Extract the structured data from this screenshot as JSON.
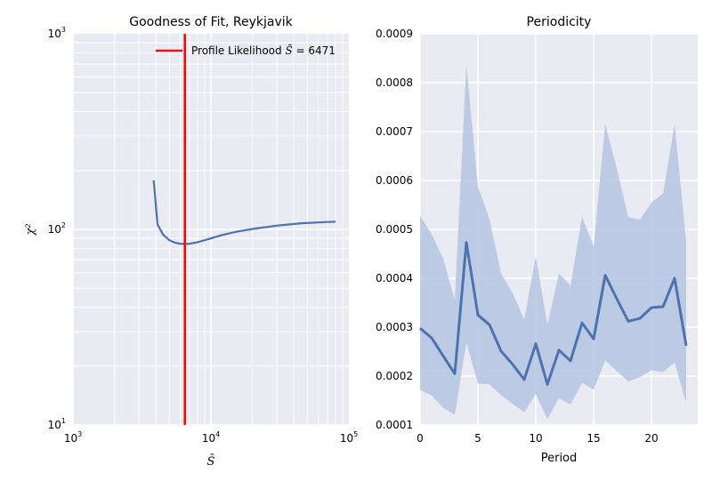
{
  "chart_data": [
    {
      "type": "line",
      "title": "Goodness of Fit, Reykjavik",
      "xlabel": "S̄",
      "ylabel": "χ²",
      "xscale": "log",
      "yscale": "log",
      "xlim": [
        1000,
        100000
      ],
      "ylim": [
        10,
        1000
      ],
      "x_ticks": [
        {
          "value": 1000,
          "base": "10",
          "exp": "3"
        },
        {
          "value": 10000,
          "base": "10",
          "exp": "4"
        },
        {
          "value": 100000,
          "base": "10",
          "exp": "5"
        }
      ],
      "y_ticks": [
        {
          "value": 10,
          "base": "10",
          "exp": "1"
        },
        {
          "value": 100,
          "base": "10",
          "exp": "2"
        },
        {
          "value": 1000,
          "base": "10",
          "exp": "3"
        }
      ],
      "grid": true,
      "series": [
        {
          "color": "#4c72b0",
          "x": [
            3850,
            4100,
            4500,
            5000,
            5500,
            6000,
            6471,
            7000,
            8000,
            9000,
            10000,
            12000,
            15000,
            20000,
            30000,
            45000,
            60000,
            80000
          ],
          "y": [
            178,
            106,
            94,
            88,
            85.5,
            84.5,
            84.2,
            84.5,
            86,
            88,
            90,
            93.5,
            97,
            100.5,
            104.5,
            107.5,
            108.5,
            109.5
          ]
        }
      ],
      "vline": {
        "x": 6471,
        "color": "#ff0000",
        "label_prefix": "Profile Likelihood",
        "label_symbol": "S̄",
        "label_suffix": "= 6471"
      },
      "legend": "top-right"
    },
    {
      "type": "line",
      "title": "Periodicity",
      "xlabel": "Period",
      "ylabel": "",
      "xlim": [
        0,
        24
      ],
      "ylim": [
        0.0001,
        0.0009
      ],
      "x_ticks": [
        "0",
        "5",
        "10",
        "15",
        "20"
      ],
      "x_tick_values": [
        0,
        5,
        10,
        15,
        20
      ],
      "y_ticks": [
        "0.0001",
        "0.0002",
        "0.0003",
        "0.0004",
        "0.0005",
        "0.0006",
        "0.0007",
        "0.0008",
        "0.0009"
      ],
      "y_tick_values": [
        0.0001,
        0.0002,
        0.0003,
        0.0004,
        0.0005,
        0.0006,
        0.0007,
        0.0008,
        0.0009
      ],
      "grid": true,
      "series": [
        {
          "color": "#4c72b0",
          "band_color": "#b5c4e0",
          "x": [
            0,
            1,
            2,
            3,
            4,
            5,
            6,
            7,
            8,
            9,
            10,
            11,
            12,
            13,
            14,
            15,
            16,
            17,
            18,
            19,
            20,
            21,
            22,
            23
          ],
          "y": [
            0.000298,
            0.000278,
            0.000241,
            0.000205,
            0.000473,
            0.000325,
            0.000305,
            0.000251,
            0.000224,
            0.000193,
            0.000266,
            0.000183,
            0.000253,
            0.000231,
            0.000309,
            0.000276,
            0.000406,
            0.000358,
            0.000312,
            0.000318,
            0.00034,
            0.000342,
            0.0004,
            0.000262
          ],
          "lower": [
            0.000172,
            0.00016,
            0.000135,
            0.000121,
            0.000268,
            0.000185,
            0.000183,
            0.000161,
            0.000143,
            0.000126,
            0.000163,
            0.000112,
            0.000155,
            0.000142,
            0.000186,
            0.000172,
            0.000232,
            0.00021,
            0.000189,
            0.000198,
            0.000212,
            0.000208,
            0.000228,
            0.000145
          ],
          "upper": [
            0.000528,
            0.00049,
            0.00044,
            0.000355,
            0.000838,
            0.000588,
            0.00052,
            0.00041,
            0.00037,
            0.000315,
            0.000445,
            0.000305,
            0.00041,
            0.000385,
            0.000526,
            0.000465,
            0.000715,
            0.000625,
            0.000525,
            0.00052,
            0.000555,
            0.000573,
            0.000715,
            0.000475
          ]
        }
      ]
    }
  ]
}
